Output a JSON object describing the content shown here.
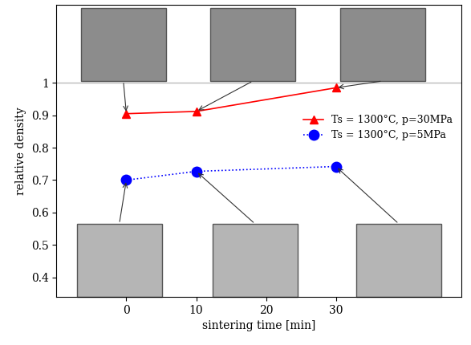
{
  "chart_data": {
    "type": "line",
    "x_label": "sintering time [min]",
    "y_label": "relative density",
    "x": [
      0,
      10,
      30
    ],
    "series": [
      {
        "name": "Ts = 1300°C, p=30MPa",
        "color": "#ff0000",
        "marker": "triangle",
        "line_style": "solid",
        "values": [
          0.905,
          0.912,
          0.985
        ]
      },
      {
        "name": "Ts = 1300°C, p=5MPa",
        "color": "#0000ff",
        "marker": "circle",
        "line_style": "dotted",
        "values": [
          0.7,
          0.727,
          0.742
        ]
      }
    ],
    "xlim": [
      -10,
      48
    ],
    "xticks": [
      0,
      10,
      20,
      30
    ],
    "ylim": [
      0.34,
      1.24
    ],
    "yticks": [
      0.4,
      0.5,
      0.6,
      0.7,
      0.8,
      0.9,
      1
    ],
    "reference_line": 1,
    "grid": false,
    "legend": "right"
  }
}
